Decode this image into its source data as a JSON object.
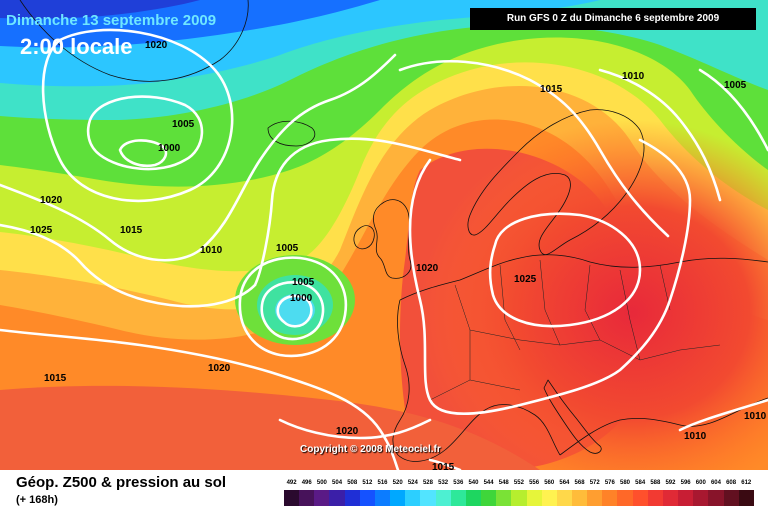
{
  "header": {
    "date_label": "Dimanche 13 septembre 2009",
    "time_label": "2:00 locale",
    "run_label": "Run GFS 0 Z du Dimanche 6 septembre 2009"
  },
  "footer": {
    "title": "Géop. Z500 & pression au sol",
    "subtitle": "(+ 168h)",
    "copyright": "Copyright © 2008 Meteociel.fr"
  },
  "color_scale": {
    "values": [
      "492",
      "496",
      "500",
      "504",
      "508",
      "512",
      "516",
      "520",
      "524",
      "528",
      "532",
      "536",
      "540",
      "544",
      "548",
      "552",
      "556",
      "560",
      "564",
      "568",
      "572",
      "576",
      "580",
      "584",
      "588",
      "592",
      "596",
      "600",
      "604",
      "608",
      "612"
    ],
    "colors": [
      "#2a0a2e",
      "#47125a",
      "#5a1a86",
      "#3b1fa8",
      "#1f2fd6",
      "#1552ff",
      "#0c7cff",
      "#00a8ff",
      "#2ccfff",
      "#52e4ff",
      "#4df0d2",
      "#2ee89a",
      "#1ed660",
      "#3fd63a",
      "#7ae236",
      "#b6ee2e",
      "#e6f53a",
      "#fff250",
      "#ffd84a",
      "#ffbc3a",
      "#ff9e30",
      "#ff8228",
      "#ff6828",
      "#ff502c",
      "#f23a32",
      "#e02a36",
      "#c81e34",
      "#a81830",
      "#88142a",
      "#621020",
      "#3a0a12"
    ]
  },
  "isobars": [
    "1020",
    "1005",
    "1000",
    "1020",
    "1025",
    "1015",
    "1010",
    "1005",
    "1005",
    "1000",
    "1015",
    "1010",
    "1005",
    "1020",
    "1025",
    "1015",
    "1020",
    "1020",
    "1015",
    "1010",
    "1010"
  ],
  "layers": {
    "accent_time_color": "#ffffff",
    "accent_date_color": "#6fe7ff",
    "isobar_color": "#ffffff"
  }
}
